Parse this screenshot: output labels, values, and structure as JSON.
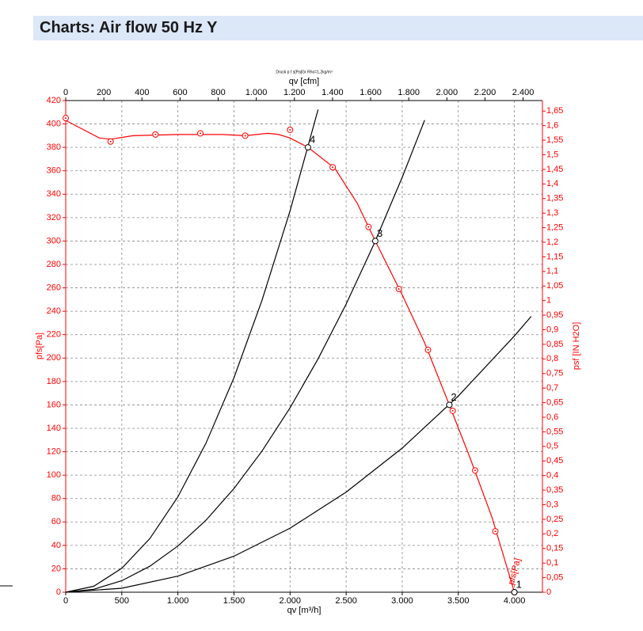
{
  "header": {
    "title": "Charts: Air flow 50 Hz Y"
  },
  "chart_data": {
    "type": "line",
    "title": "Druck p f s[Pa]Gr Rho=1,2kg/m³",
    "x_label": "qv [m³/h]",
    "x2_label": "qv [cfm]",
    "y_label": "pfs[Pa]",
    "y2_label": "psf [IN H2O]",
    "curve_label": "pfs[Pa]",
    "y_color": "#ff0000",
    "y2_color": "#ff0000",
    "grid": true,
    "xlim": [
      0,
      4250
    ],
    "xticks": [
      0,
      500,
      {
        "value": 1000,
        "label": "1.000"
      },
      {
        "value": 1500,
        "label": "1.500"
      },
      {
        "value": 2000,
        "label": "2.000"
      },
      {
        "value": 2500,
        "label": "2.500"
      },
      {
        "value": 3000,
        "label": "3.000"
      },
      {
        "value": 3500,
        "label": "3.500"
      },
      {
        "value": 4000,
        "label": "4.000"
      }
    ],
    "x2lim": [
      0,
      2501.5
    ],
    "x2ticks": [
      0,
      200,
      400,
      600,
      800,
      {
        "value": 1000,
        "label": "1.000"
      },
      {
        "value": 1200,
        "label": "1.200"
      },
      {
        "value": 1400,
        "label": "1.400"
      },
      {
        "value": 1600,
        "label": "1.600"
      },
      {
        "value": 1800,
        "label": "1.800"
      },
      {
        "value": 2000,
        "label": "2.000"
      },
      {
        "value": 2200,
        "label": "2.200"
      },
      {
        "value": 2400,
        "label": "2.400"
      }
    ],
    "ylim": [
      0,
      420
    ],
    "yticks": [
      0,
      20,
      40,
      60,
      80,
      100,
      120,
      140,
      160,
      180,
      200,
      220,
      240,
      260,
      280,
      300,
      320,
      340,
      360,
      380,
      400,
      420
    ],
    "y2lim": [
      0,
      1.686
    ],
    "y2ticks": [
      0,
      {
        "value": 0.05,
        "label": "0,05"
      },
      {
        "value": 0.1,
        "label": "0,1"
      },
      {
        "value": 0.15,
        "label": "0,15"
      },
      {
        "value": 0.2,
        "label": "0,2"
      },
      {
        "value": 0.25,
        "label": "0,25"
      },
      {
        "value": 0.3,
        "label": "0,3"
      },
      {
        "value": 0.35,
        "label": "0,35"
      },
      {
        "value": 0.4,
        "label": "0,4"
      },
      {
        "value": 0.45,
        "label": "0,45"
      },
      {
        "value": 0.5,
        "label": "0,5"
      },
      {
        "value": 0.55,
        "label": "0,55"
      },
      {
        "value": 0.6,
        "label": "0,6"
      },
      {
        "value": 0.65,
        "label": "0,65"
      },
      {
        "value": 0.7,
        "label": "0,7"
      },
      {
        "value": 0.75,
        "label": "0,75"
      },
      {
        "value": 0.8,
        "label": "0,8"
      },
      {
        "value": 0.85,
        "label": "0,85"
      },
      {
        "value": 0.9,
        "label": "0,9"
      },
      {
        "value": 0.95,
        "label": "0,95"
      },
      1,
      {
        "value": 1.05,
        "label": "1,05"
      },
      {
        "value": 1.1,
        "label": "1,1"
      },
      {
        "value": 1.15,
        "label": "1,15"
      },
      {
        "value": 1.2,
        "label": "1,2"
      },
      {
        "value": 1.25,
        "label": "1,25"
      },
      {
        "value": 1.3,
        "label": "1,3"
      },
      {
        "value": 1.35,
        "label": "1,35"
      },
      {
        "value": 1.4,
        "label": "1,4"
      },
      {
        "value": 1.45,
        "label": "1,45"
      },
      {
        "value": 1.5,
        "label": "1,5"
      },
      {
        "value": 1.55,
        "label": "1,55"
      },
      {
        "value": 1.6,
        "label": "1,6"
      },
      {
        "value": 1.65,
        "label": "1,65"
      }
    ],
    "series": [
      {
        "color": "#ff0000",
        "line": true,
        "marker": "none",
        "x": [
          0,
          300,
          400,
          600,
          1000,
          1400,
          1600,
          1800,
          1900,
          2000,
          2160,
          2400,
          2600,
          2760,
          3000,
          3200,
          3420,
          3600,
          3800,
          4000
        ],
        "values": [
          403,
          388,
          387,
          390,
          391,
          391,
          390,
          392,
          391,
          388,
          380,
          362,
          332,
          300,
          254,
          213,
          160,
          116,
          64,
          0
        ]
      },
      {
        "color": "#ff0000",
        "line": false,
        "marker": "target",
        "x": [
          0,
          400,
          800,
          1200,
          1600,
          2000,
          2380,
          2700,
          2970,
          3230,
          3450,
          3650,
          3830,
          4000
        ],
        "values": [
          405,
          385,
          391,
          392,
          390,
          395,
          363,
          312,
          259,
          207,
          155,
          104,
          52,
          0
        ]
      },
      {
        "color": "#000000",
        "line": true,
        "marker": "none",
        "x": [
          0,
          250,
          500,
          750,
          1000,
          1250,
          1500,
          1750,
          2000,
          2250
        ],
        "values": [
          0,
          5.1,
          20.4,
          45.8,
          81.4,
          127.3,
          183.3,
          249.4,
          325.8,
          412.3
        ]
      },
      {
        "color": "#000000",
        "line": true,
        "marker": "none",
        "x": [
          0,
          250,
          500,
          750,
          1000,
          1250,
          1500,
          1750,
          2000,
          2250,
          2500,
          2750,
          3000,
          3200
        ],
        "values": [
          0,
          2.5,
          9.8,
          22.2,
          39.4,
          61.5,
          88.6,
          120.6,
          157.5,
          199.4,
          246.1,
          297.8,
          354.4,
          403.3
        ]
      },
      {
        "color": "#000000",
        "line": true,
        "marker": "none",
        "x": [
          0,
          500,
          1000,
          1500,
          2000,
          2500,
          3000,
          3500,
          4000,
          4150
        ],
        "values": [
          0,
          3.4,
          13.7,
          30.8,
          54.7,
          85.5,
          123.1,
          167.6,
          218.9,
          235.6
        ]
      },
      {
        "color": "#000000",
        "line": false,
        "marker": "open-circle",
        "x": [
          4000,
          3420,
          2760,
          2160
        ],
        "values": [
          0,
          160,
          300,
          380
        ],
        "labels": [
          "1",
          "2",
          "3",
          "4"
        ]
      }
    ]
  }
}
